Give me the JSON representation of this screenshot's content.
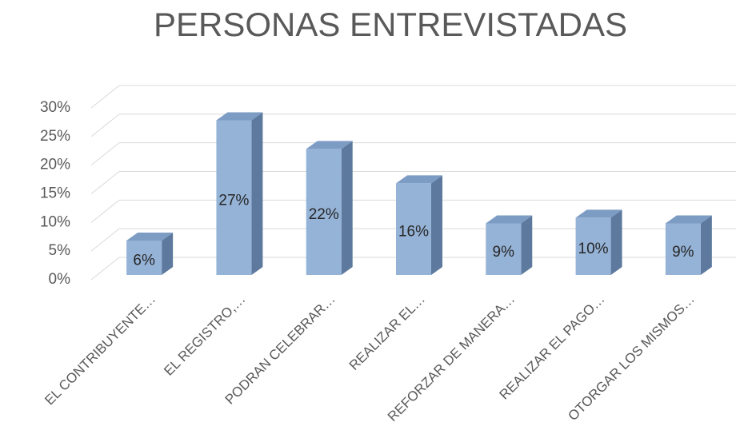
{
  "chart_data": {
    "type": "bar3d",
    "title": "PERSONAS ENTREVISTADAS",
    "categories": [
      "EL CONTRIBUYENTE…",
      "EL REGISTRO,…",
      "PODRAN CELEBRAR…",
      "REALIZAR EL…",
      "REFORZAR DE MANERA…",
      "REALIZAR EL PAGO…",
      "OTORGAR LOS MISMOS…"
    ],
    "values": [
      6,
      27,
      22,
      16,
      9,
      10,
      9
    ],
    "value_labels": [
      "6%",
      "27%",
      "22%",
      "16%",
      "9%",
      "10%",
      "9%"
    ],
    "color": "#95b3d7",
    "ylim": [
      0,
      30
    ],
    "yticks": [
      {
        "value": 0,
        "label": "0%"
      },
      {
        "value": 5,
        "label": "5%"
      },
      {
        "value": 10,
        "label": "10%"
      },
      {
        "value": 15,
        "label": "15%"
      },
      {
        "value": 20,
        "label": "20%"
      },
      {
        "value": 25,
        "label": "25%"
      },
      {
        "value": 30,
        "label": "30%"
      }
    ],
    "grid": true
  }
}
